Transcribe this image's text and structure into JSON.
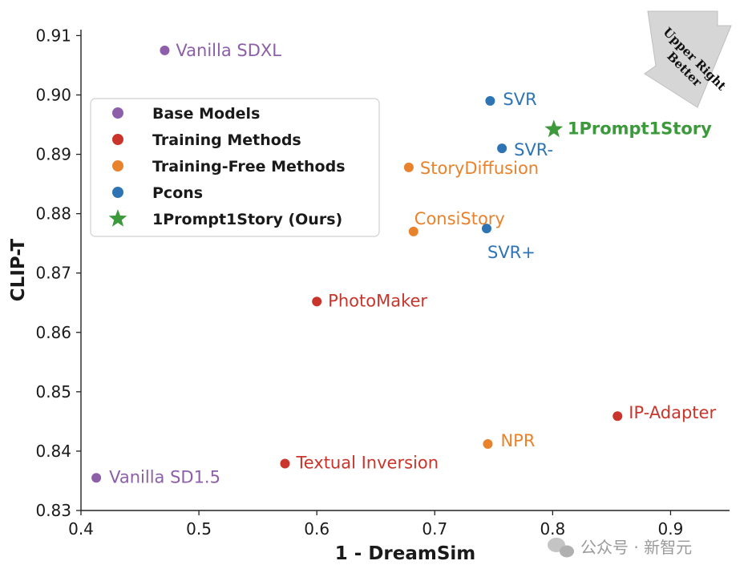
{
  "chart_data": {
    "type": "scatter",
    "xlabel": "1 - DreamSim",
    "ylabel": "CLIP-T",
    "xlim": [
      0.4,
      0.95
    ],
    "ylim": [
      0.83,
      0.911
    ],
    "xticks": [
      "0.4",
      "0.5",
      "0.6",
      "0.7",
      "0.8",
      "0.9"
    ],
    "yticks": [
      "0.83",
      "0.84",
      "0.85",
      "0.86",
      "0.87",
      "0.88",
      "0.89",
      "0.90",
      "0.91"
    ],
    "grid": false,
    "legend_position": "upper-left",
    "series": [
      {
        "name": "Base Models",
        "color": "#8c5fa8",
        "marker": "circle",
        "points": [
          {
            "label": "Vanilla SDXL",
            "x": 0.471,
            "y": 0.9075
          },
          {
            "label": "Vanilla SD1.5",
            "x": 0.413,
            "y": 0.8355
          }
        ]
      },
      {
        "name": "Training Methods",
        "color": "#c9352b",
        "marker": "circle",
        "points": [
          {
            "label": "PhotoMaker",
            "x": 0.6,
            "y": 0.8652
          },
          {
            "label": "Textual Inversion",
            "x": 0.573,
            "y": 0.8379
          },
          {
            "label": "IP-Adapter",
            "x": 0.855,
            "y": 0.8459
          }
        ]
      },
      {
        "name": "Training-Free Methods",
        "color": "#e8822c",
        "marker": "circle",
        "points": [
          {
            "label": "StoryDiffusion",
            "x": 0.678,
            "y": 0.8878
          },
          {
            "label": "ConsiStory",
            "x": 0.682,
            "y": 0.877
          },
          {
            "label": "NPR",
            "x": 0.745,
            "y": 0.8412
          }
        ]
      },
      {
        "name": "Pcons",
        "color": "#2e74b5",
        "marker": "circle",
        "points": [
          {
            "label": "SVR",
            "x": 0.747,
            "y": 0.899
          },
          {
            "label": "SVR-",
            "x": 0.757,
            "y": 0.891
          },
          {
            "label": "SVR+",
            "x": 0.744,
            "y": 0.8775
          }
        ]
      },
      {
        "name": "1Prompt1Story (Ours)",
        "color": "#3c9a3c",
        "marker": "star",
        "points": [
          {
            "label": "1Prompt1Story",
            "x": 0.801,
            "y": 0.8942
          }
        ]
      }
    ],
    "annotation": "Upper Right Better"
  },
  "watermark": {
    "icon": "wechat-icon",
    "text": "公众号 · 新智元"
  }
}
